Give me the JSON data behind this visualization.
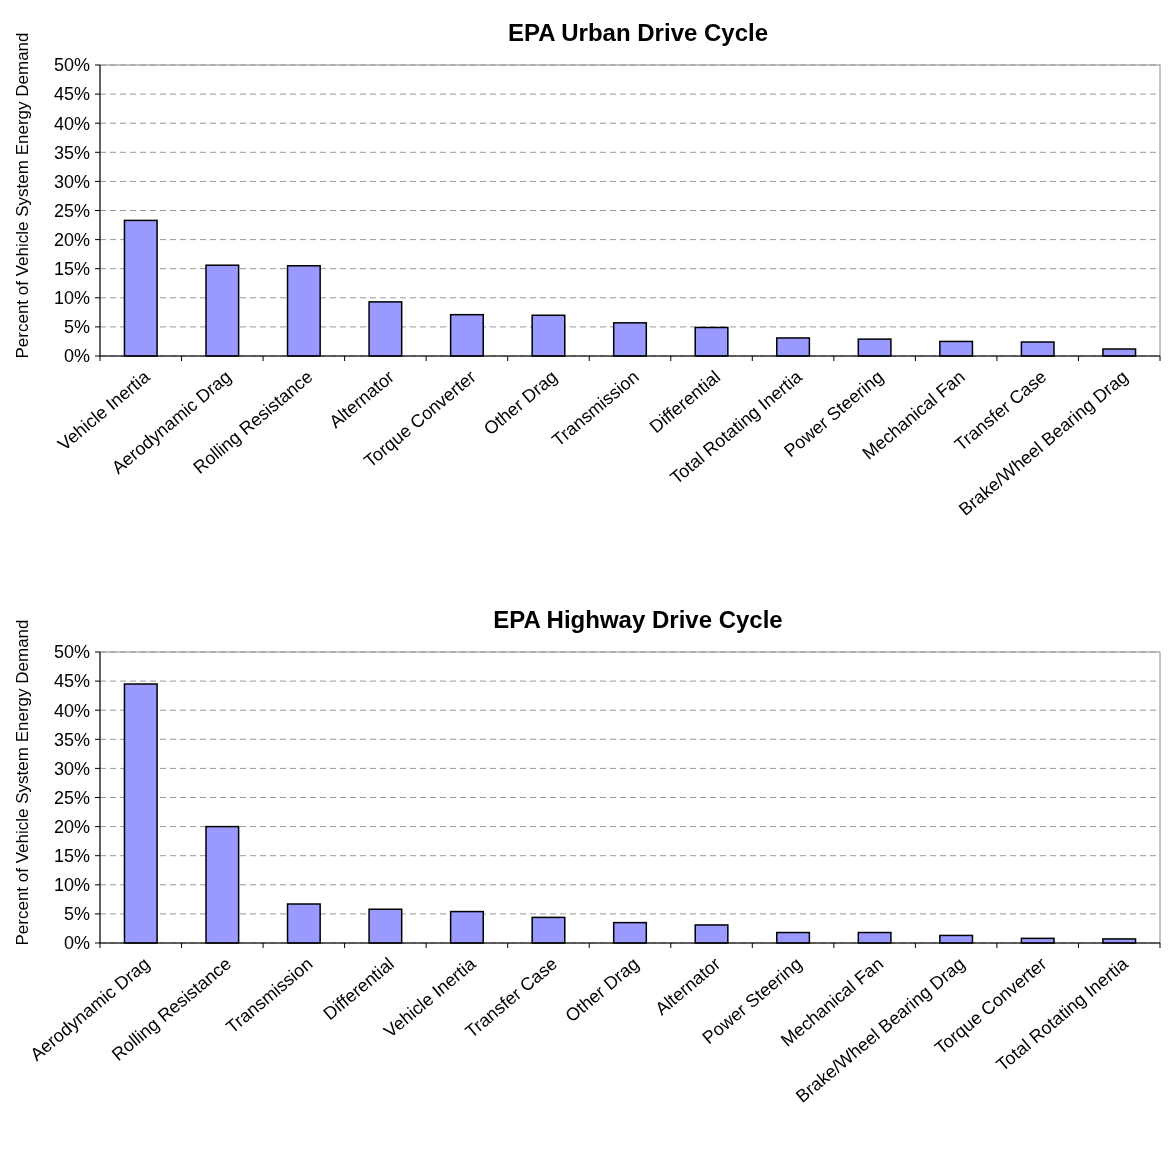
{
  "chart_data": [
    {
      "type": "bar",
      "title": "EPA  Urban Drive Cycle",
      "ylabel": "Percent of Vehicle System Energy Demand",
      "categories": [
        "Vehicle Inertia",
        "Aerodynamic Drag",
        "Rolling Resistance",
        "Alternator",
        "Torque Converter",
        "Other Drag",
        "Transmission",
        "Differential",
        "Total Rotating Inertia",
        "Power Steering",
        "Mechanical Fan",
        "Transfer Case",
        "Brake/Wheel Bearing Drag"
      ],
      "values": [
        23.3,
        15.6,
        15.5,
        9.3,
        7.1,
        7.0,
        5.7,
        4.9,
        3.1,
        2.9,
        2.5,
        2.4,
        1.2
      ],
      "color": "#9999ff",
      "ylim": [
        0,
        50
      ],
      "yticks": [
        {
          "value": 0,
          "label": "0%"
        },
        {
          "value": 5,
          "label": "5%"
        },
        {
          "value": 10,
          "label": "10%"
        },
        {
          "value": 15,
          "label": "15%"
        },
        {
          "value": 20,
          "label": "20%"
        },
        {
          "value": 25,
          "label": "25%"
        },
        {
          "value": 30,
          "label": "30%"
        },
        {
          "value": 35,
          "label": "35%"
        },
        {
          "value": 40,
          "label": "40%"
        },
        {
          "value": 45,
          "label": "45%"
        },
        {
          "value": 50,
          "label": "50%"
        }
      ],
      "grid": "y"
    },
    {
      "type": "bar",
      "title": "EPA  Highway Drive Cycle",
      "ylabel": "Percent of Vehicle System Energy Demand",
      "categories": [
        "Aerodynamic Drag",
        "Rolling Resistance",
        "Transmission",
        "Differential",
        "Vehicle Inertia",
        "Transfer Case",
        "Other Drag",
        "Alternator",
        "Power Steering",
        "Mechanical Fan",
        "Brake/Wheel Bearing Drag",
        "Torque Converter",
        "Total Rotating Inertia"
      ],
      "values": [
        44.5,
        20.0,
        6.7,
        5.8,
        5.4,
        4.4,
        3.5,
        3.1,
        1.8,
        1.8,
        1.3,
        0.8,
        0.7
      ],
      "color": "#9999ff",
      "ylim": [
        0,
        50
      ],
      "yticks": [
        {
          "value": 0,
          "label": "0%"
        },
        {
          "value": 5,
          "label": "5%"
        },
        {
          "value": 10,
          "label": "10%"
        },
        {
          "value": 15,
          "label": "15%"
        },
        {
          "value": 20,
          "label": "20%"
        },
        {
          "value": 25,
          "label": "25%"
        },
        {
          "value": 30,
          "label": "30%"
        },
        {
          "value": 35,
          "label": "35%"
        },
        {
          "value": 40,
          "label": "40%"
        },
        {
          "value": 45,
          "label": "45%"
        },
        {
          "value": 50,
          "label": "50%"
        }
      ],
      "grid": "y"
    }
  ]
}
